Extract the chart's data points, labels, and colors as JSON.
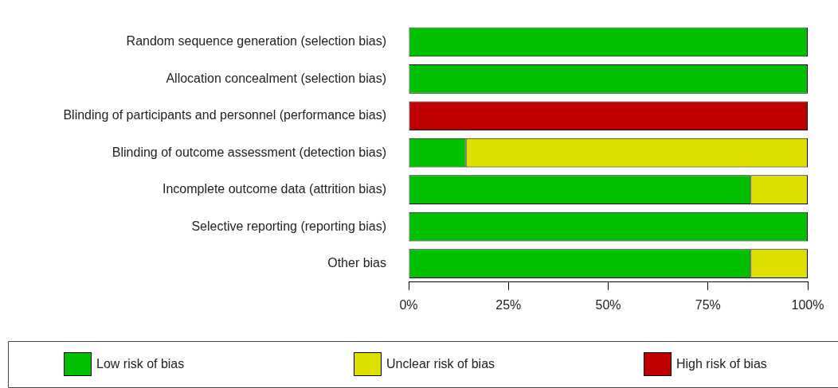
{
  "chart_data": {
    "type": "bar",
    "orientation": "horizontal",
    "stacked": true,
    "categories": [
      "Random sequence generation (selection bias)",
      "Allocation concealment (selection bias)",
      "Blinding of participants and personnel (performance bias)",
      "Blinding of outcome assessment (detection bias)",
      "Incomplete outcome data (attrition bias)",
      "Selective reporting (reporting bias)",
      "Other bias"
    ],
    "series": [
      {
        "name": "Low risk of bias",
        "color": "#00c000",
        "values": [
          100,
          100,
          0,
          14.3,
          85.7,
          100,
          85.7
        ]
      },
      {
        "name": "Unclear risk of bias",
        "color": "#e0e000",
        "values": [
          0,
          0,
          0,
          85.7,
          14.3,
          0,
          14.3
        ]
      },
      {
        "name": "High risk of bias",
        "color": "#c00000",
        "values": [
          0,
          0,
          100,
          0,
          0,
          0,
          0
        ]
      }
    ],
    "xlim": [
      0,
      100
    ],
    "xticks": [
      {
        "value": 0,
        "label": "0%"
      },
      {
        "value": 25,
        "label": "25%"
      },
      {
        "value": 50,
        "label": "50%"
      },
      {
        "value": 75,
        "label": "75%"
      },
      {
        "value": 100,
        "label": "100%"
      }
    ],
    "grid": false,
    "legend": "bottom"
  }
}
